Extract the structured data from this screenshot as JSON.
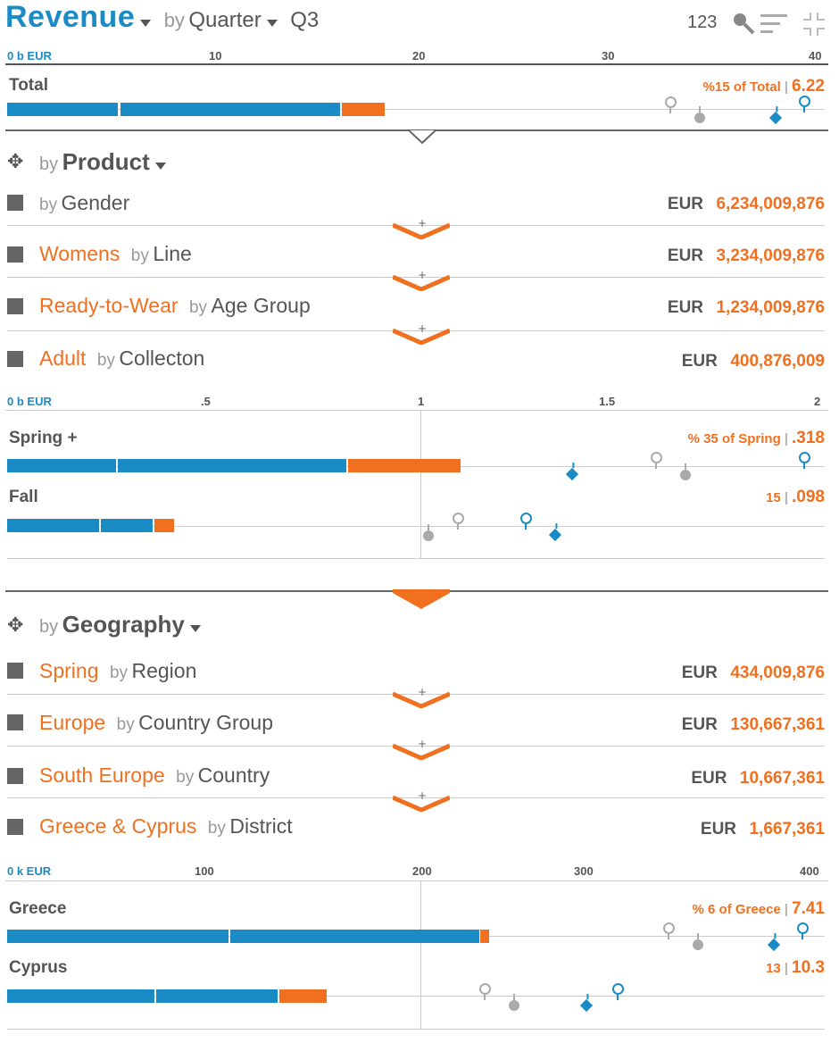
{
  "header": {
    "title": "Revenue",
    "by": "by",
    "grouping": "Quarter",
    "period": "Q3",
    "toolbar_number": "123"
  },
  "axis1": {
    "ticks": [
      "0 b EUR",
      "10",
      "20",
      "30",
      "40"
    ]
  },
  "total": {
    "label": "Total",
    "pct_label": "%15 of Total",
    "value": "6.22"
  },
  "product": {
    "by": "by",
    "title": "Product",
    "levels": [
      {
        "selected": "",
        "by": "by",
        "dim": "Gender",
        "currency": "EUR",
        "amount": "6,234,009,876"
      },
      {
        "selected": "Womens",
        "by": "by",
        "dim": "Line",
        "currency": "EUR",
        "amount": "3,234,009,876"
      },
      {
        "selected": "Ready-to-Wear",
        "by": "by",
        "dim": "Age Group",
        "currency": "EUR",
        "amount": "1,234,009,876"
      },
      {
        "selected": "Adult",
        "by": "by",
        "dim": "Collecton",
        "currency": "EUR",
        "amount": "400,876,009"
      }
    ],
    "axis_ticks": [
      "0 b EUR",
      ".5",
      "1",
      "1.5",
      "2"
    ],
    "rows": [
      {
        "label": "Spring +",
        "pct_label": "% 35 of Spring",
        "value": ".318"
      },
      {
        "label": "Fall",
        "pct_label": "15",
        "value": ".098"
      }
    ]
  },
  "geography": {
    "by": "by",
    "title": "Geography",
    "levels": [
      {
        "selected": "Spring",
        "by": "by",
        "dim": "Region",
        "currency": "EUR",
        "amount": "434,009,876"
      },
      {
        "selected": "Europe",
        "by": "by",
        "dim": "Country Group",
        "currency": "EUR",
        "amount": "130,667,361"
      },
      {
        "selected": "South Europe",
        "by": "by",
        "dim": "Country",
        "currency": "EUR",
        "amount": "10,667,361"
      },
      {
        "selected": "Greece & Cyprus",
        "by": "by",
        "dim": "District",
        "currency": "EUR",
        "amount": "1,667,361"
      }
    ],
    "axis_ticks": [
      "0 k EUR",
      "100",
      "200",
      "300",
      "400"
    ],
    "rows": [
      {
        "label": "Greece",
        "pct_label": "% 6 of Greece",
        "value": "7.41"
      },
      {
        "label": "Cyprus",
        "pct_label": "13",
        "value": "10.3"
      }
    ]
  },
  "colors": {
    "accent_blue": "#1a8bc4",
    "accent_orange": "#f07020",
    "text_grey": "#555555"
  },
  "icons": [
    "dropdown-caret-icon",
    "search-key-icon",
    "sort-lines-icon",
    "collapse-icon",
    "move-icon",
    "expand-chevron-icon"
  ]
}
